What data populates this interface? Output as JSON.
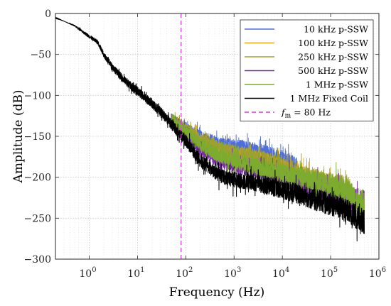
{
  "chart_data": {
    "type": "line",
    "xlabel": "Frequency (Hz)",
    "ylabel": "Amplitude (dB)",
    "x_scale": "log",
    "xlim": [
      0.2,
      1000000
    ],
    "ylim": [
      -300,
      0
    ],
    "grid": true,
    "legend_position": "top-right",
    "xticks": [
      {
        "value": 1,
        "base": "10",
        "exp": "0"
      },
      {
        "value": 10,
        "base": "10",
        "exp": "1"
      },
      {
        "value": 100,
        "base": "10",
        "exp": "2"
      },
      {
        "value": 1000,
        "base": "10",
        "exp": "3"
      },
      {
        "value": 10000,
        "base": "10",
        "exp": "4"
      },
      {
        "value": 100000,
        "base": "10",
        "exp": "5"
      },
      {
        "value": 1000000,
        "base": "10",
        "exp": "6"
      }
    ],
    "yticks": [
      {
        "value": 0,
        "label": "0"
      },
      {
        "value": -50,
        "label": "−50"
      },
      {
        "value": -100,
        "label": "−100"
      },
      {
        "value": -150,
        "label": "−150"
      },
      {
        "value": -200,
        "label": "−200"
      },
      {
        "value": -250,
        "label": "−250"
      },
      {
        "value": -300,
        "label": "−300"
      }
    ],
    "series": [
      {
        "name": "10 kHz p-SSW",
        "color": "#4f6fd6",
        "x": [
          50,
          100,
          200,
          500,
          1000,
          2000,
          5000,
          10000,
          20000
        ],
        "y": [
          -128,
          -140,
          -150,
          -160,
          -163,
          -166,
          -172,
          -180,
          -188
        ]
      },
      {
        "name": "100 kHz p-SSW",
        "color": "#e0a91f",
        "x": [
          50,
          100,
          200,
          500,
          1000,
          2000,
          5000,
          10000,
          20000,
          50000,
          100000
        ],
        "y": [
          -128,
          -142,
          -158,
          -168,
          -172,
          -175,
          -182,
          -190,
          -198,
          -205,
          -210
        ]
      },
      {
        "name": "250 kHz p-SSW",
        "color": "#9fa030",
        "x": [
          50,
          100,
          200,
          500,
          1000,
          2000,
          5000,
          10000,
          20000,
          50000,
          100000,
          250000
        ],
        "y": [
          -128,
          -140,
          -154,
          -164,
          -170,
          -174,
          -180,
          -188,
          -195,
          -203,
          -208,
          -214
        ]
      },
      {
        "name": "500 kHz p-SSW",
        "color": "#7a2fa8",
        "x": [
          50,
          100,
          200,
          500,
          1000,
          2000,
          5000,
          10000,
          20000,
          50000,
          100000,
          200000,
          500000
        ],
        "y": [
          -128,
          -146,
          -166,
          -180,
          -185,
          -190,
          -195,
          -200,
          -206,
          -212,
          -218,
          -224,
          -232
        ]
      },
      {
        "name": "1 MHz p-SSW",
        "color": "#7cab2f",
        "x": [
          50,
          100,
          200,
          500,
          1000,
          2000,
          5000,
          10000,
          20000,
          50000,
          100000,
          200000,
          500000
        ],
        "y": [
          -128,
          -144,
          -160,
          -174,
          -180,
          -185,
          -190,
          -195,
          -200,
          -205,
          -210,
          -216,
          -234
        ]
      },
      {
        "name": "1 MHz Fixed Coil",
        "color": "#000000",
        "x": [
          0.2,
          0.5,
          1,
          1.5,
          2,
          3,
          5,
          10,
          20,
          30,
          50,
          100,
          200,
          500,
          1000,
          2000,
          5000,
          10000,
          20000,
          50000,
          100000,
          200000,
          500000
        ],
        "y": [
          -5,
          -15,
          -28,
          -35,
          -50,
          -65,
          -80,
          -95,
          -110,
          -120,
          -135,
          -156,
          -180,
          -198,
          -203,
          -205,
          -210,
          -215,
          -220,
          -228,
          -233,
          -240,
          -255
        ]
      }
    ],
    "markers": [
      {
        "name": "$f_\\mathrm{m}$ = 80 Hz",
        "label_main": "f",
        "label_sub": "m",
        "label_rest": " = 80 Hz",
        "x": 80,
        "color": "#d63fd6",
        "style": "dashed"
      }
    ]
  }
}
